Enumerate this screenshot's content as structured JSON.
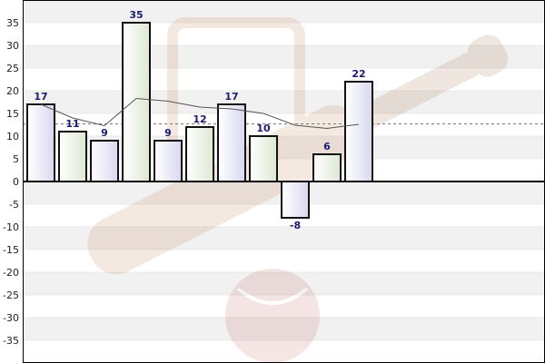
{
  "chart_data": {
    "type": "bar",
    "title": "",
    "xlabel": "",
    "ylabel": "",
    "ylim": [
      -40,
      40
    ],
    "y_ticks": [
      35,
      30,
      25,
      20,
      15,
      10,
      5,
      0,
      -5,
      -10,
      -15,
      -20,
      -25,
      -30,
      -35
    ],
    "grid": "horizontal bands",
    "values": [
      17,
      11,
      9,
      35,
      9,
      12,
      17,
      10,
      -8,
      6,
      22
    ],
    "data_labels": [
      "17",
      "11",
      "9",
      "35",
      "9",
      "12",
      "17",
      "10",
      "-8",
      "6",
      "22"
    ],
    "moving_average": [
      17,
      14,
      12.3,
      18.3,
      17.7,
      16.4,
      16,
      15,
      12.4,
      11.7,
      12.6
    ],
    "average_value": 12.7,
    "watermark": "cricket-bat-and-ball"
  },
  "colors": {
    "bar_blue_tint": "#d8d8ef",
    "bar_green_tint": "#dde8d2",
    "bar_stroke": "#111111",
    "trend_line": "#555555",
    "average_line": "#777777",
    "band": "#f1f1f1",
    "grid": "#dcdcdc",
    "label": "#1a1a6e"
  }
}
